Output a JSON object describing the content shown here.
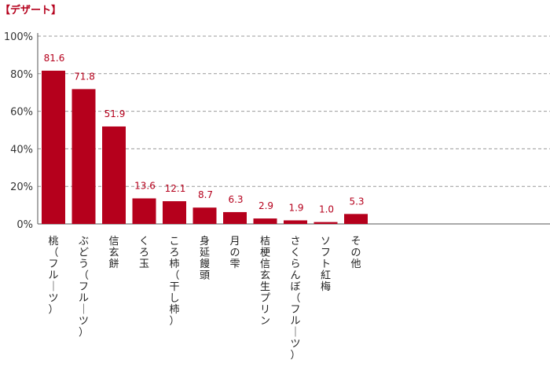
{
  "chart_data": {
    "type": "bar",
    "title": "【デザート】",
    "categories": [
      "桃（フルーツ）",
      "ぶどう（フルーツ）",
      "信玄餅",
      "くろ玉",
      "ころ柿（干し柿）",
      "身延饅頭",
      "月の雫",
      "桔梗信玄生プリン",
      "さくらんぼ（フルーツ）",
      "ソフト紅梅",
      "その他"
    ],
    "values": [
      81.6,
      71.8,
      51.9,
      13.6,
      12.1,
      8.7,
      6.3,
      2.9,
      1.9,
      1.0,
      5.3
    ],
    "value_labels": [
      "81.6",
      "71.8",
      "51.9",
      "13.6",
      "12.1",
      "8.7",
      "6.3",
      "2.9",
      "1.9",
      "1.0",
      "5.3"
    ],
    "ylim": [
      0,
      100
    ],
    "yticks": [
      0,
      20,
      40,
      60,
      80,
      100
    ],
    "ytick_labels": [
      "0%",
      "20%",
      "40%",
      "60%",
      "80%",
      "100%"
    ],
    "grid": true,
    "bar_color": "#b5001c",
    "grid_color": "#999999"
  }
}
